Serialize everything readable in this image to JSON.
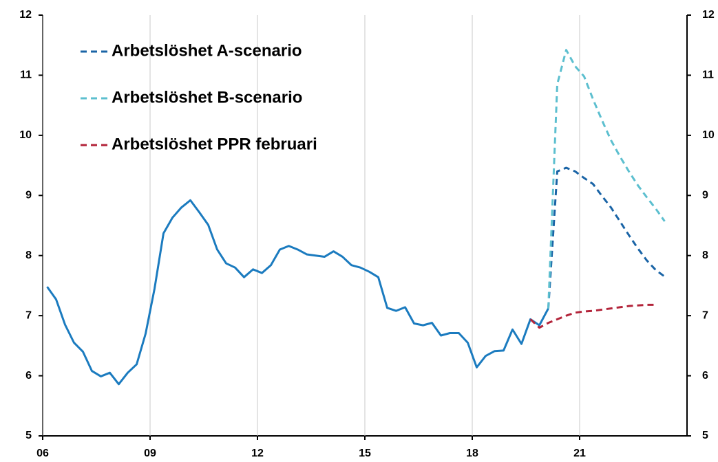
{
  "chart_data": {
    "type": "line",
    "xlim": [
      2006,
      2024
    ],
    "xticks": [
      {
        "value": 2006,
        "label": "06"
      },
      {
        "value": 2009,
        "label": "09"
      },
      {
        "value": 2012,
        "label": "12"
      },
      {
        "value": 2015,
        "label": "15"
      },
      {
        "value": 2018,
        "label": "18"
      },
      {
        "value": 2021,
        "label": "21"
      }
    ],
    "ylim": [
      5,
      12
    ],
    "yticks": [
      5,
      6,
      7,
      8,
      9,
      10,
      11,
      12
    ],
    "grid": true,
    "legend": "upper left",
    "series": [
      {
        "color": "#1b7bbf",
        "dashed": false,
        "x": [
          2006.125,
          2006.375,
          2006.625,
          2006.875,
          2007.125,
          2007.375,
          2007.625,
          2007.875,
          2008.125,
          2008.375,
          2008.625,
          2008.875,
          2009.125,
          2009.375,
          2009.625,
          2009.875,
          2010.125,
          2010.375,
          2010.625,
          2010.875,
          2011.125,
          2011.375,
          2011.625,
          2011.875,
          2012.125,
          2012.375,
          2012.625,
          2012.875,
          2013.125,
          2013.375,
          2013.625,
          2013.875,
          2014.125,
          2014.375,
          2014.625,
          2014.875,
          2015.125,
          2015.375,
          2015.625,
          2015.875,
          2016.125,
          2016.375,
          2016.625,
          2016.875,
          2017.125,
          2017.375,
          2017.625,
          2017.875,
          2018.125,
          2018.375,
          2018.625,
          2018.875,
          2019.125,
          2019.375,
          2019.625,
          2019.875,
          2020.125
        ],
        "values": [
          7.48,
          7.27,
          6.85,
          6.55,
          6.4,
          6.08,
          5.99,
          6.05,
          5.86,
          6.05,
          6.19,
          6.7,
          7.45,
          8.37,
          8.63,
          8.8,
          8.92,
          8.72,
          8.51,
          8.1,
          7.87,
          7.8,
          7.64,
          7.77,
          7.71,
          7.84,
          8.1,
          8.16,
          8.1,
          8.02,
          8.0,
          7.98,
          8.07,
          7.98,
          7.84,
          7.8,
          7.73,
          7.64,
          7.13,
          7.08,
          7.14,
          6.87,
          6.84,
          6.88,
          6.67,
          6.71,
          6.71,
          6.55,
          6.14,
          6.33,
          6.41,
          6.42,
          6.77,
          6.53,
          6.94,
          6.84,
          7.12
        ]
      },
      {
        "name": "Arbetslöshet A-scenario",
        "color": "#1a64a6",
        "dashed": true,
        "x": [
          2020.125,
          2020.375,
          2020.625,
          2020.875,
          2021.125,
          2021.375,
          2021.625,
          2021.875,
          2022.125,
          2022.375,
          2022.625,
          2022.875,
          2023.125,
          2023.375
        ],
        "values": [
          7.12,
          9.4,
          9.46,
          9.4,
          9.29,
          9.19,
          8.99,
          8.8,
          8.57,
          8.34,
          8.12,
          7.92,
          7.76,
          7.65
        ]
      },
      {
        "name": "Arbetslöshet B-scenario",
        "color": "#5cbfcf",
        "dashed": true,
        "x": [
          2020.125,
          2020.375,
          2020.625,
          2020.875,
          2021.125,
          2021.375,
          2021.625,
          2021.875,
          2022.125,
          2022.375,
          2022.625,
          2022.875,
          2023.125,
          2023.375
        ],
        "values": [
          7.12,
          10.85,
          11.42,
          11.15,
          10.98,
          10.6,
          10.25,
          9.92,
          9.65,
          9.4,
          9.17,
          8.97,
          8.78,
          8.57
        ]
      },
      {
        "name": "Arbetslöshet PPR februari",
        "color": "#b3243a",
        "dashed": true,
        "x": [
          2019.625,
          2019.875,
          2020.125,
          2020.375,
          2020.625,
          2020.875,
          2021.125,
          2021.375,
          2021.625,
          2021.875,
          2022.125,
          2022.375,
          2022.625,
          2022.875,
          2023.125
        ],
        "values": [
          6.94,
          6.8,
          6.88,
          6.94,
          7.0,
          7.05,
          7.07,
          7.08,
          7.1,
          7.12,
          7.14,
          7.16,
          7.17,
          7.18,
          7.18
        ]
      }
    ]
  }
}
